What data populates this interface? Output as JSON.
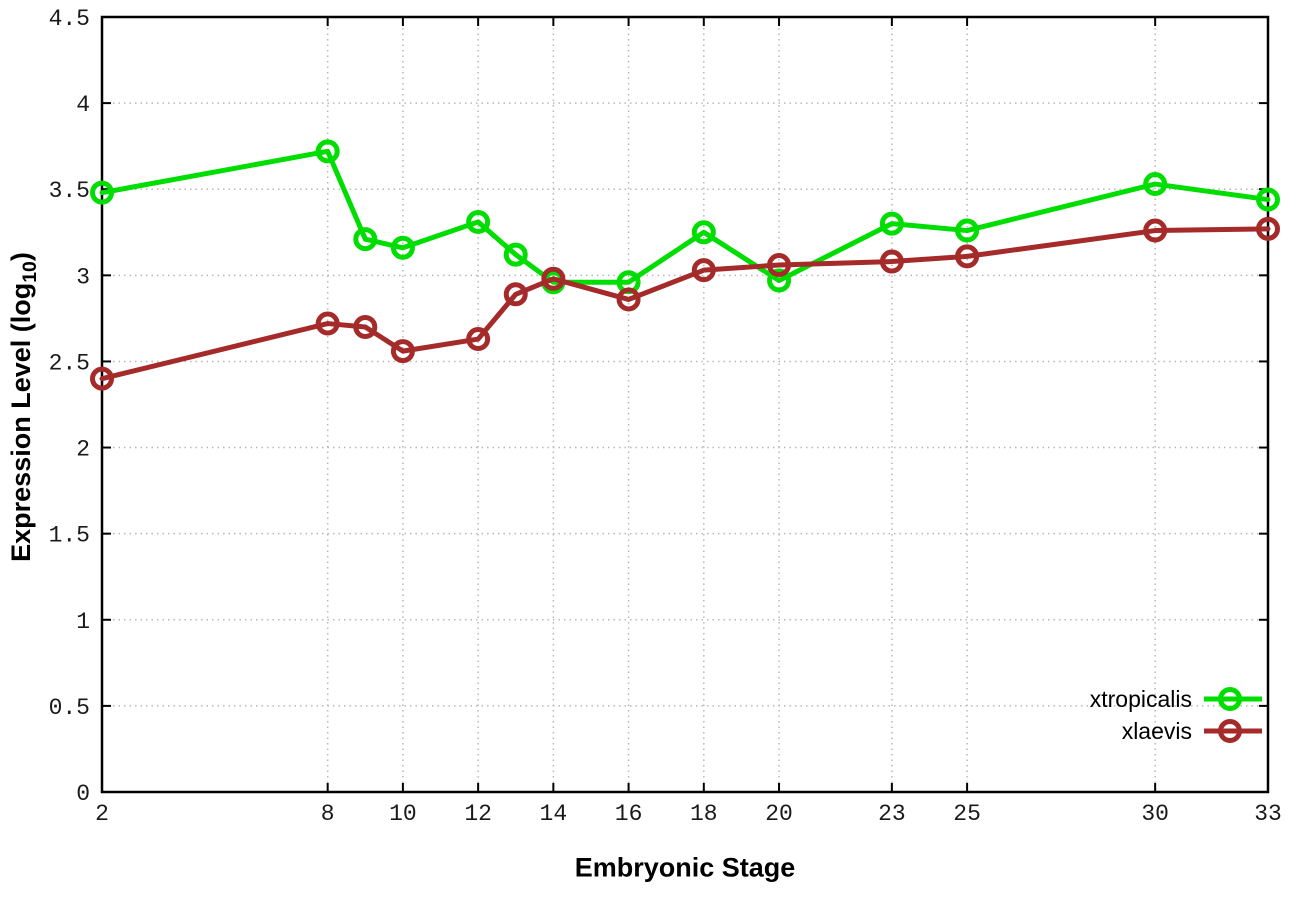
{
  "figure": {
    "background": "#ffffff",
    "axis_color": "#000000",
    "grid_color": "#b8b8b8",
    "xlabel": "Embryonic Stage",
    "ylabel_prefix": "Expression Level (log",
    "ylabel_sub": "10",
    "ylabel_suffix": ")"
  },
  "chart_data": {
    "type": "line",
    "title": "",
    "xlabel": "Embryonic Stage",
    "ylabel": "Expression Level (log10)",
    "x": [
      2,
      8,
      9,
      10,
      12,
      13,
      14,
      16,
      18,
      20,
      23,
      25,
      30,
      33
    ],
    "series": [
      {
        "name": "xtropicalis",
        "color": "#00dd00",
        "values": [
          3.48,
          3.72,
          3.21,
          3.16,
          3.31,
          3.12,
          2.96,
          2.96,
          3.25,
          2.97,
          3.3,
          3.26,
          3.53,
          3.44
        ]
      },
      {
        "name": "xlaevis",
        "color": "#a52a2a",
        "values": [
          2.4,
          2.72,
          2.7,
          2.56,
          2.63,
          2.89,
          2.98,
          2.86,
          3.03,
          3.06,
          3.08,
          3.11,
          3.26,
          3.27
        ]
      }
    ],
    "xlim": [
      2,
      33
    ],
    "ylim": [
      0,
      4.5
    ],
    "x_ticks": [
      2,
      8,
      10,
      12,
      14,
      16,
      18,
      20,
      23,
      25,
      30,
      33
    ],
    "y_ticks": [
      0,
      0.5,
      1,
      1.5,
      2,
      2.5,
      3,
      3.5,
      4,
      4.5
    ],
    "grid": true,
    "grid_style": "dotted",
    "marker": "open-circle",
    "legend_position": "bottom-right",
    "legend_entries": [
      "xtropicalis",
      "xlaevis"
    ]
  }
}
